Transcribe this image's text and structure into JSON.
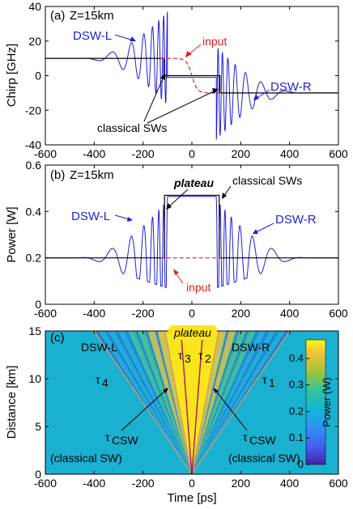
{
  "chart_data": [
    {
      "panel": "(a)",
      "type": "line",
      "annotation_z": "Z=15km",
      "xlim": [
        -600,
        600
      ],
      "ylim": [
        -40,
        40
      ],
      "xticks": [
        -600,
        -400,
        -200,
        0,
        200,
        400,
        600
      ],
      "yticks": [
        -40,
        -20,
        0,
        20,
        40
      ],
      "ylabel": "Chirp [GHz]",
      "xlabel": "",
      "series": [
        {
          "name": "",
          "color": "#1f1fd6",
          "kind": "dsw-chirp"
        },
        {
          "name": "",
          "color": "#000000",
          "kind": "classical-chirp"
        },
        {
          "name": "",
          "color": "#e0201b",
          "kind": "input-chirp",
          "dash": true
        }
      ],
      "labels": {
        "dsw_l": "DSW-L",
        "dsw_r": "DSW-R",
        "input": "input",
        "classical": "classical SWs"
      },
      "levels": {
        "left": 10,
        "right": -10,
        "max_peak": 36,
        "min_peak": -36
      }
    },
    {
      "panel": "(b)",
      "type": "line",
      "annotation_z": "Z=15km",
      "xlim": [
        -600,
        600
      ],
      "ylim": [
        0,
        0.6
      ],
      "xticks": [
        -600,
        -400,
        -200,
        0,
        200,
        400,
        600
      ],
      "yticks": [
        0,
        0.2,
        0.4,
        0.6
      ],
      "ylabel": "Power [W]",
      "xlabel": "",
      "labels": {
        "plateau": "plateau",
        "classical": "classical SWs",
        "dsw_l": "DSW-L",
        "dsw_r": "DSW-R",
        "input": "input"
      },
      "levels": {
        "background": 0.2,
        "plateau": 0.465,
        "classical_plateau": 0.47,
        "max_peak": 0.45
      }
    },
    {
      "panel": "(c)",
      "type": "heatmap",
      "xlim": [
        -600,
        600
      ],
      "ylim": [
        0,
        15
      ],
      "xticks": [
        -600,
        -400,
        -200,
        0,
        200,
        400,
        600
      ],
      "yticks": [
        0,
        5,
        10,
        15
      ],
      "xlabel": "Time [ps]",
      "ylabel": "Distance [km]",
      "colorbar": {
        "label": "Power (W)",
        "ticks": [
          0,
          0.1,
          0.2,
          0.3,
          0.4
        ],
        "range": [
          0,
          0.47
        ]
      },
      "labels": {
        "plateau": "plateau",
        "dsw_l": "DSW-L",
        "dsw_r": "DSW-R",
        "tau4": "τ",
        "tau4_sub": "4",
        "tau3": "τ",
        "tau3_sub": "3",
        "tau2": "τ",
        "tau2_sub": "2",
        "tau1": "τ",
        "tau1_sub": "1",
        "tau_csw": "τ",
        "tau_csw_sub": "CSW",
        "classical_sw": "(classical SW)"
      }
    }
  ],
  "colors": {
    "blue": "#1f1fd6",
    "red": "#e0201b",
    "black": "#000000",
    "bg_cyan": "#1ab0d0",
    "plateau_yellow": "#f9e51c",
    "line_tan": "#c8a070",
    "line_purple": "#b01060"
  }
}
